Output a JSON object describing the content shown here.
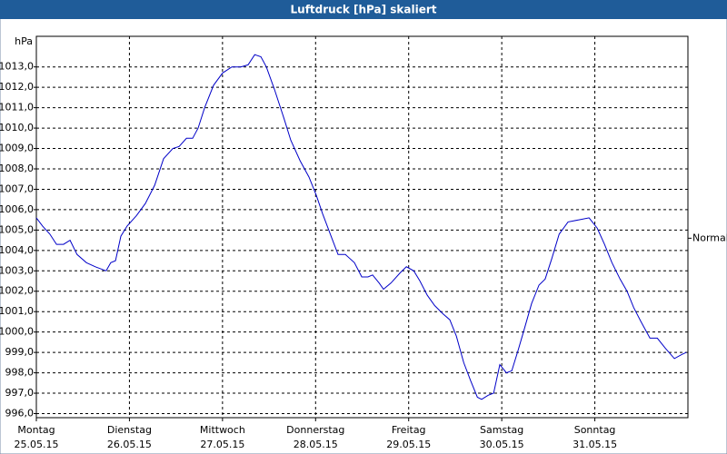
{
  "chart_data": {
    "type": "line",
    "title": "Luftdruck [hPa] skaliert",
    "y_label": "hPa",
    "annotation": {
      "text": "Normal",
      "value": 1004.6
    },
    "x": [
      0,
      1.6,
      3.5,
      5.2,
      7.0,
      8.7,
      10.5,
      12.9,
      15.2,
      18.0,
      19.2,
      20.4,
      21.8,
      23.4,
      25.8,
      28.1,
      30.5,
      32.8,
      35.2,
      36.8,
      38.7,
      40.3,
      41.7,
      43.4,
      45.7,
      48.0,
      50.4,
      52.7,
      54.6,
      56.3,
      57.9,
      59.3,
      61.4,
      63.8,
      65.6,
      68.0,
      70.3,
      72.2,
      73.8,
      76.2,
      77.8,
      79.7,
      82.0,
      83.9,
      85.5,
      86.7,
      88.4,
      89.5,
      91.4,
      93.8,
      95.4,
      97.3,
      98.9,
      100.8,
      102.7,
      104.8,
      106.6,
      108.3,
      110.2,
      112.0,
      113.7,
      114.8,
      116.5,
      117.9,
      119.5,
      121.2,
      122.6,
      124.2,
      125.9,
      127.7,
      129.6,
      131.2,
      132.9,
      134.8,
      137.1,
      139.9,
      142.5,
      144.6,
      146.5,
      148.4,
      150.5,
      152.3,
      154.0,
      155.9,
      158.2,
      160.1,
      162.2,
      164.5,
      166.4,
      167.6
    ],
    "series": [
      {
        "color": "#0000c8",
        "values": [
          1005.6,
          1005.2,
          1004.8,
          1004.3,
          1004.3,
          1004.5,
          1003.8,
          1003.4,
          1003.2,
          1003.0,
          1003.4,
          1003.5,
          1004.7,
          1005.2,
          1005.7,
          1006.3,
          1007.2,
          1008.5,
          1009.0,
          1009.1,
          1009.5,
          1009.5,
          1010.0,
          1011.0,
          1012.1,
          1012.7,
          1013.0,
          1013.0,
          1013.1,
          1013.6,
          1013.5,
          1013.0,
          1011.9,
          1010.5,
          1009.4,
          1008.4,
          1007.6,
          1006.7,
          1005.8,
          1004.6,
          1003.8,
          1003.8,
          1003.4,
          1002.7,
          1002.7,
          1002.8,
          1002.4,
          1002.1,
          1002.4,
          1002.9,
          1003.2,
          1003.0,
          1002.5,
          1001.8,
          1001.3,
          1000.9,
          1000.6,
          999.8,
          998.5,
          997.6,
          996.8,
          996.7,
          996.9,
          997.0,
          998.4,
          998.0,
          998.1,
          999.1,
          1000.2,
          1001.4,
          1002.3,
          1002.6,
          1003.6,
          1004.8,
          1005.4,
          1005.5,
          1005.6,
          1005.1,
          1004.3,
          1003.4,
          1002.6,
          1002.0,
          1001.2,
          1000.5,
          999.7,
          999.7,
          999.2,
          998.7,
          998.9,
          999.0
        ]
      }
    ],
    "xlim": [
      0,
      168
    ],
    "xticks": [
      {
        "value": 0,
        "label": "Montag"
      },
      {
        "value": 24,
        "label": "Dienstag"
      },
      {
        "value": 48,
        "label": "Mittwoch"
      },
      {
        "value": 72,
        "label": "Donnerstag"
      },
      {
        "value": 96,
        "label": "Freitag"
      },
      {
        "value": 120,
        "label": "Samstag"
      },
      {
        "value": 144,
        "label": "Sonntag"
      }
    ],
    "xtick_dates": [
      "25.05.15",
      "26.05.15",
      "27.05.15",
      "28.05.15",
      "29.05.15",
      "30.05.15",
      "31.05.15"
    ],
    "ylim": [
      995.8,
      1014.5
    ],
    "yticks": [
      {
        "value": 996,
        "label": "996,0"
      },
      {
        "value": 997,
        "label": "997,0"
      },
      {
        "value": 998,
        "label": "998,0"
      },
      {
        "value": 999,
        "label": "999,0"
      },
      {
        "value": 1000,
        "label": "1000,0"
      },
      {
        "value": 1001,
        "label": "1001,0"
      },
      {
        "value": 1002,
        "label": "1002,0"
      },
      {
        "value": 1003,
        "label": "1003,0"
      },
      {
        "value": 1004,
        "label": "1004,0"
      },
      {
        "value": 1005,
        "label": "1005,0"
      },
      {
        "value": 1006,
        "label": "1006,0"
      },
      {
        "value": 1007,
        "label": "1007,0"
      },
      {
        "value": 1008,
        "label": "1008,0"
      },
      {
        "value": 1009,
        "label": "1009,0"
      },
      {
        "value": 1010,
        "label": "1010,0"
      },
      {
        "value": 1011,
        "label": "1011,0"
      },
      {
        "value": 1012,
        "label": "1012,0"
      },
      {
        "value": 1013,
        "label": "1013,0"
      }
    ],
    "grid": true
  }
}
